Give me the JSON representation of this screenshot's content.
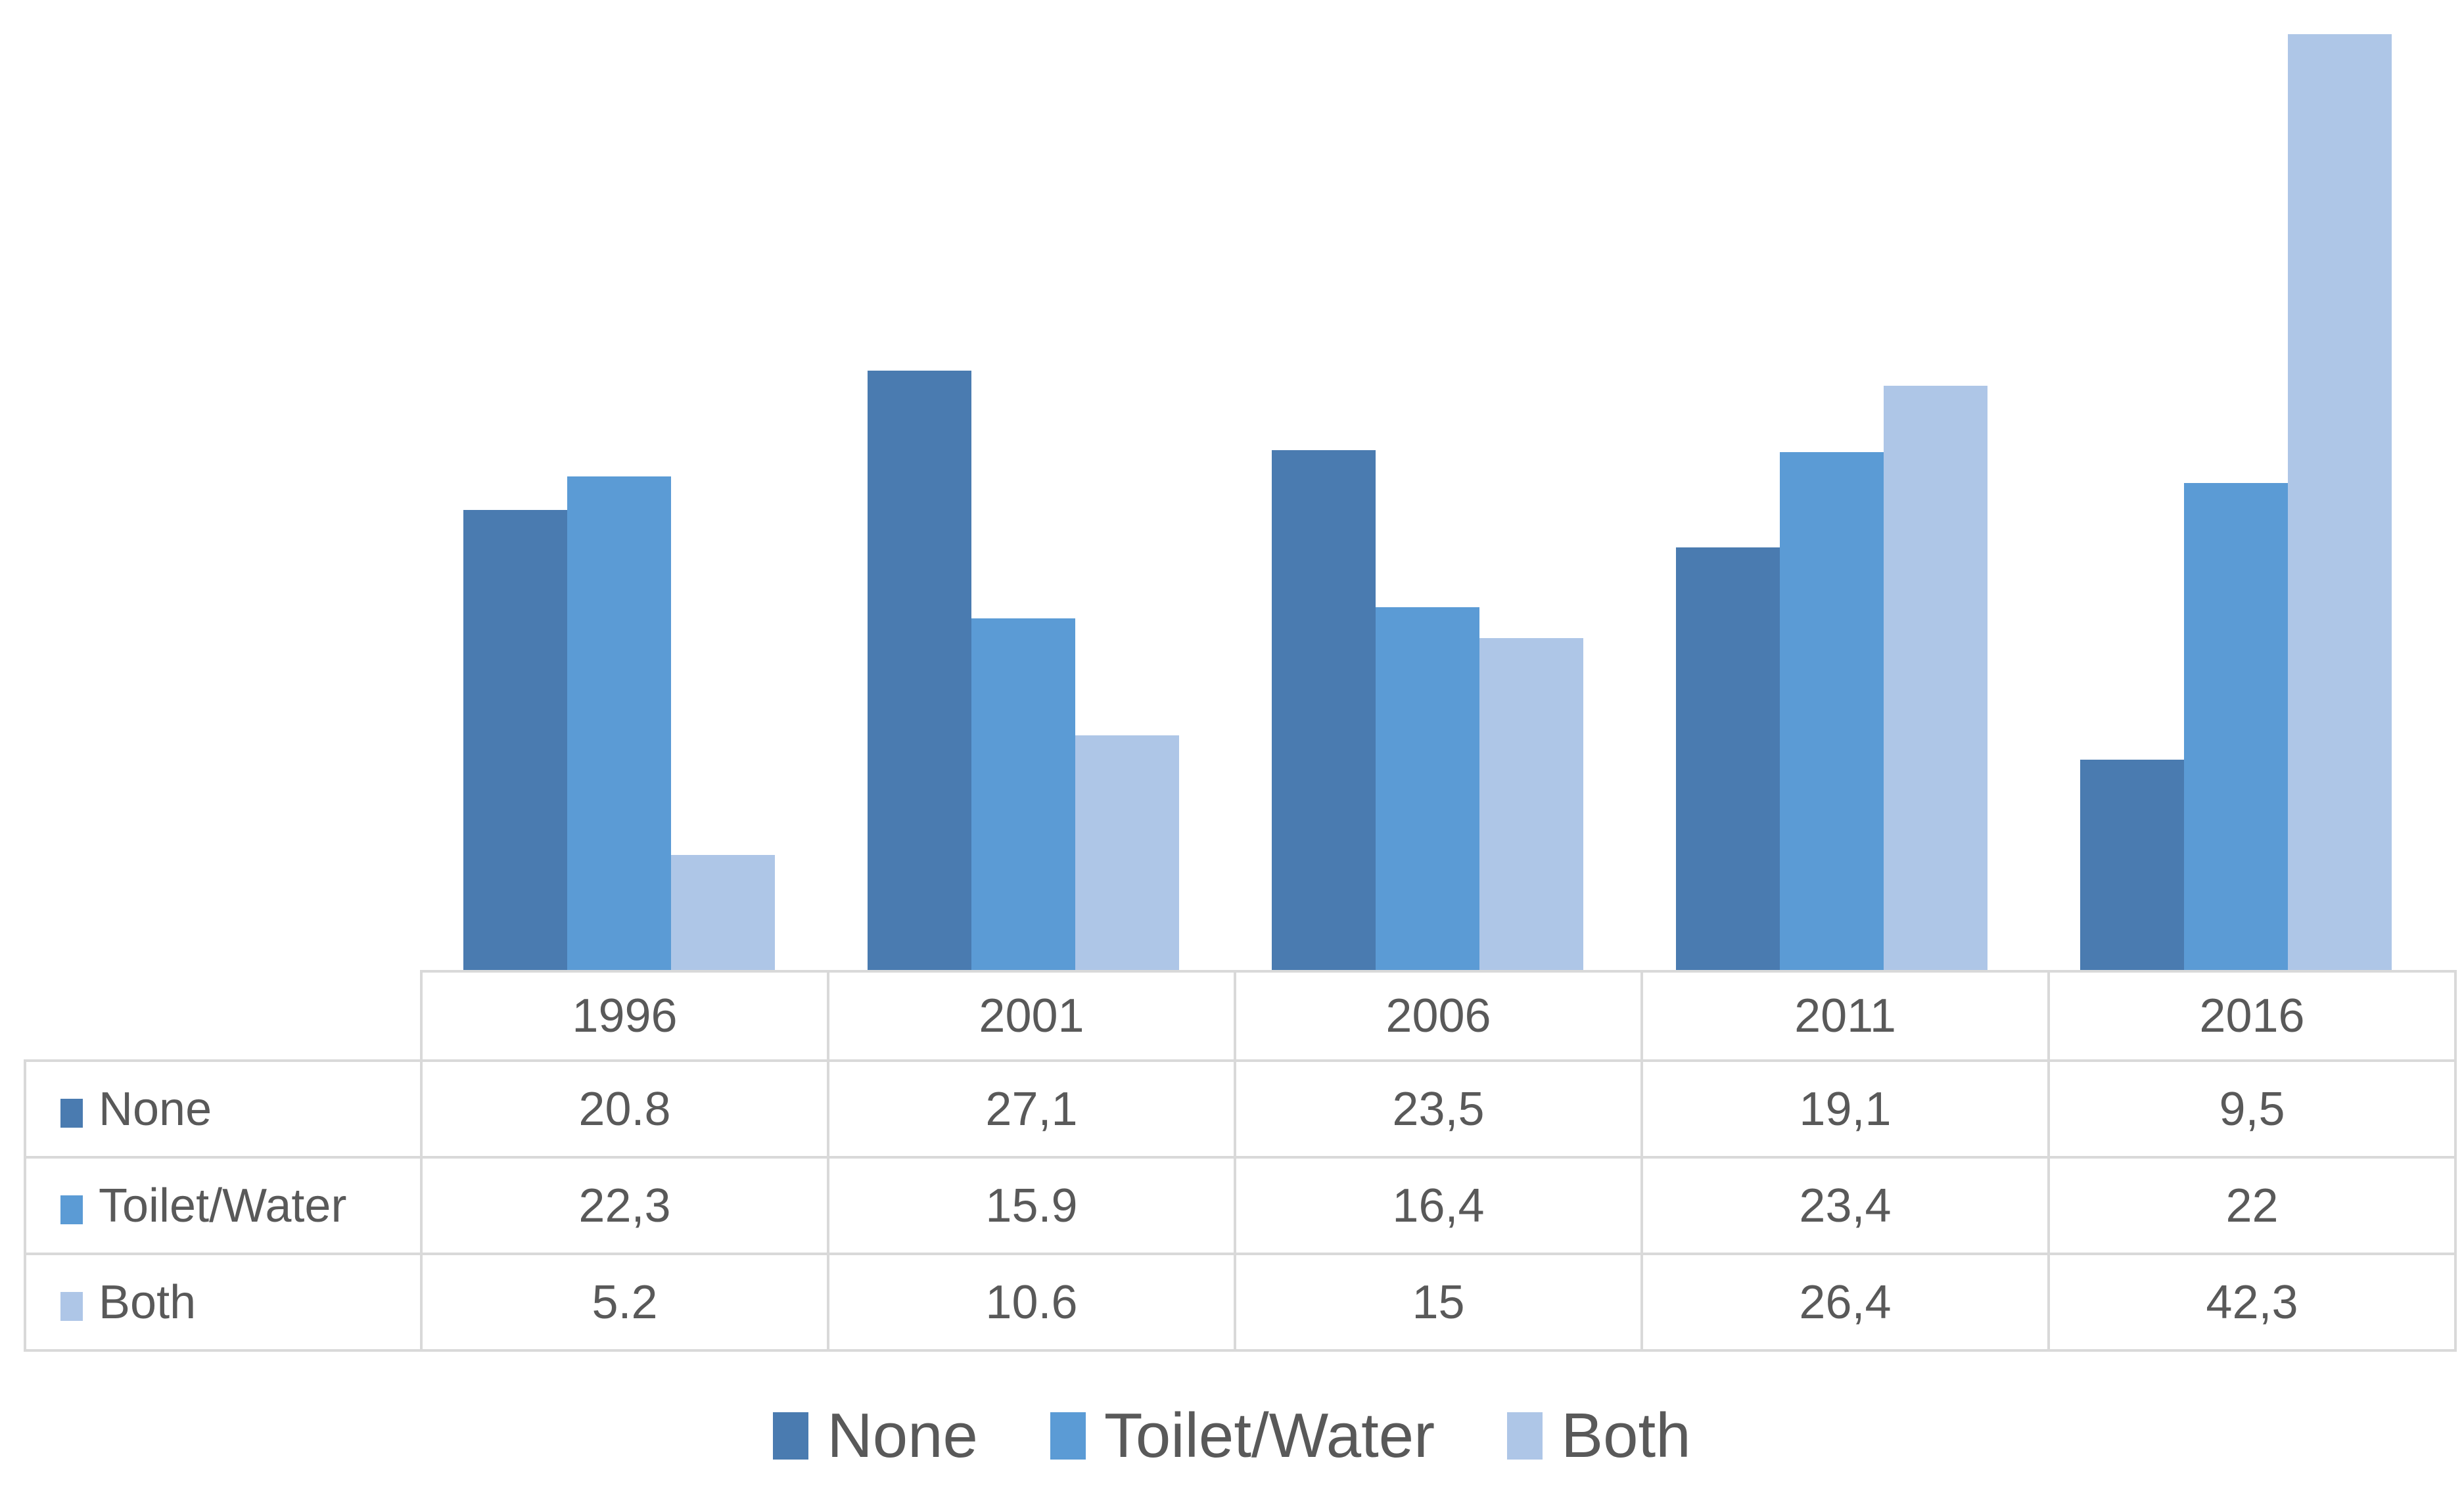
{
  "chart_data": {
    "type": "bar",
    "title": "",
    "xlabel": "",
    "ylabel": "",
    "categories": [
      "1996",
      "2001",
      "2006",
      "2011",
      "2016"
    ],
    "series": [
      {
        "name": "None",
        "color": "#4A7BB0",
        "values": [
          20.8,
          27.1,
          23.5,
          19.1,
          9.5
        ]
      },
      {
        "name": "Toilet/Water",
        "color": "#5B9BD5",
        "values": [
          22.3,
          15.9,
          16.4,
          23.4,
          22
        ]
      },
      {
        "name": "Both",
        "color": "#AEC6E7",
        "values": [
          5.2,
          10.6,
          15,
          26.4,
          42.3
        ]
      }
    ],
    "ylim": [
      0,
      43.85
    ],
    "grid": false,
    "axes_shown": false,
    "legend_position": "bottom",
    "data_table_shown": true
  },
  "table": {
    "year_headers": [
      "1996",
      "2001",
      "2006",
      "2011",
      "2016"
    ],
    "rows": [
      {
        "label": "None",
        "swatch_color": "#4A7BB0",
        "cells": [
          "20.8",
          "27,1",
          "23,5",
          "19,1",
          "9,5"
        ]
      },
      {
        "label": "Toilet/Water",
        "swatch_color": "#5B9BD5",
        "cells": [
          "22,3",
          "15.9",
          "16,4",
          "23,4",
          "22"
        ]
      },
      {
        "label": "Both",
        "swatch_color": "#AEC6E7",
        "cells": [
          "5.2",
          "10.6",
          "15",
          "26,4",
          "42,3"
        ]
      }
    ]
  },
  "legend": {
    "items": [
      {
        "label": "None",
        "color": "#4A7BB0"
      },
      {
        "label": "Toilet/Water",
        "color": "#5B9BD5"
      },
      {
        "label": "Both",
        "color": "#AEC6E7"
      }
    ]
  },
  "colors": {
    "background": "#FFFFFF",
    "table_border": "#D9D9D9",
    "text": "#595959"
  }
}
